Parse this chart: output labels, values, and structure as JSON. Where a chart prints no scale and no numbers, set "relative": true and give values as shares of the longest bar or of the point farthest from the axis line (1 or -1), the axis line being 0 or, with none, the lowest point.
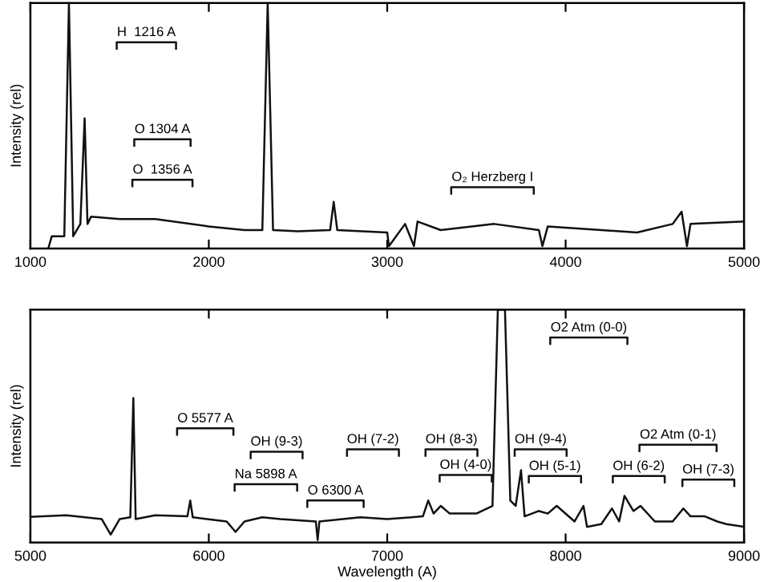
{
  "chart_data": [
    {
      "type": "line",
      "ylabel": "Intensity (rel)",
      "relative": true,
      "xlim": [
        1000,
        5000
      ],
      "xticks": [
        1000,
        2000,
        3000,
        4000,
        5000
      ],
      "tick_labels": "x",
      "grid": false,
      "legend": false,
      "series": [
        {
          "color": "#111111",
          "x": [
            1100,
            1120,
            1190,
            1216,
            1240,
            1280,
            1304,
            1320,
            1340,
            1500,
            1700,
            2000,
            2200,
            2300,
            2330,
            2360,
            2500,
            2680,
            2700,
            2720,
            3000,
            3010,
            3100,
            3150,
            3170,
            3300,
            3600,
            3850,
            3870,
            3900,
            4200,
            4400,
            4600,
            4650,
            4680,
            4700,
            5000
          ],
          "values": [
            0.0,
            0.05,
            0.05,
            1.0,
            0.05,
            0.1,
            0.53,
            0.1,
            0.13,
            0.12,
            0.12,
            0.09,
            0.075,
            0.075,
            1.0,
            0.075,
            0.07,
            0.075,
            0.19,
            0.075,
            0.065,
            0.01,
            0.1,
            0.01,
            0.11,
            0.075,
            0.1,
            0.075,
            0.01,
            0.09,
            0.075,
            0.065,
            0.1,
            0.15,
            0.01,
            0.1,
            0.11
          ]
        }
      ],
      "annotations": [
        "H  1216 A",
        "O 1304 A",
        "O  1356 A",
        "O₂ Herzberg I"
      ]
    },
    {
      "type": "line",
      "ylabel": "Intensity (rel)",
      "xlabel": "Wavelength (A)",
      "relative": true,
      "xlim": [
        5000,
        9000
      ],
      "xticks": [
        5000,
        6000,
        7000,
        8000,
        9000
      ],
      "tick_labels": "x",
      "grid": false,
      "legend": false,
      "series": [
        {
          "color": "#111111",
          "x": [
            5000,
            5200,
            5400,
            5450,
            5500,
            5560,
            5577,
            5590,
            5700,
            5880,
            5896,
            5910,
            6100,
            6150,
            6200,
            6300,
            6400,
            6600,
            6610,
            6620,
            6850,
            7000,
            7200,
            7230,
            7260,
            7300,
            7350,
            7500,
            7590,
            7620,
            7660,
            7690,
            7720,
            7750,
            7770,
            7850,
            7900,
            7950,
            8050,
            8100,
            8120,
            8200,
            8260,
            8300,
            8330,
            8380,
            8420,
            8500,
            8600,
            8660,
            8700,
            8780,
            8850,
            8900,
            9000
          ],
          "values": [
            0.11,
            0.117,
            0.1,
            0.034,
            0.1,
            0.108,
            0.62,
            0.1,
            0.117,
            0.112,
            0.18,
            0.108,
            0.09,
            0.045,
            0.09,
            0.108,
            0.1,
            0.09,
            0.01,
            0.09,
            0.108,
            0.1,
            0.112,
            0.18,
            0.124,
            0.157,
            0.124,
            0.124,
            0.157,
            1.0,
            1.0,
            0.18,
            0.157,
            0.31,
            0.112,
            0.135,
            0.124,
            0.157,
            0.09,
            0.157,
            0.067,
            0.079,
            0.146,
            0.09,
            0.2,
            0.135,
            0.157,
            0.09,
            0.09,
            0.146,
            0.112,
            0.112,
            0.09,
            0.079,
            0.067
          ]
        }
      ],
      "annotations": [
        "O 5577 A",
        "Na 5898 A",
        "O 6300 A",
        "OH (9-3)",
        "OH (7-2)",
        "OH (8-3)",
        "OH (4-0)",
        "O2 Atm (0-0)",
        "OH (9-4)",
        "OH (5-1)",
        "OH (6-2)",
        "O2 Atm (0-1)",
        "OH (7-3)"
      ]
    }
  ]
}
